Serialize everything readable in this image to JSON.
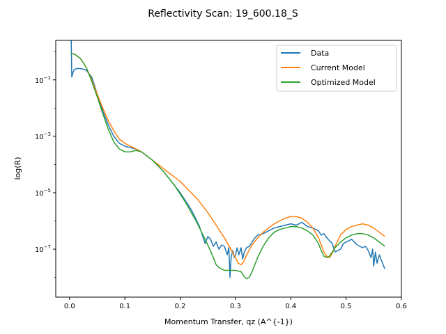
{
  "chart_data": {
    "type": "line",
    "title": "Reflectivity Scan: 19_600.18_S",
    "xlabel": "Momentum Transfer, qz (A^{-1})",
    "ylabel": "log(R)",
    "xlim": [
      -0.025,
      0.6
    ],
    "ylim_log10": [
      -8.7,
      0.4
    ],
    "y_scale": "log",
    "grid": false,
    "legend_position": "top-right",
    "x_ticks": [
      0.0,
      0.1,
      0.2,
      0.3,
      0.4,
      0.5,
      0.6
    ],
    "x_tick_labels": [
      "0.0",
      "0.1",
      "0.2",
      "0.3",
      "0.4",
      "0.5",
      "0.6"
    ],
    "y_ticks_log10": [
      -1,
      -3,
      -5,
      -7
    ],
    "y_tick_labels": [
      {
        "base": "10",
        "exp": "−1"
      },
      {
        "base": "10",
        "exp": "−3"
      },
      {
        "base": "10",
        "exp": "−5"
      },
      {
        "base": "10",
        "exp": "−7"
      }
    ],
    "series": [
      {
        "name": "Data",
        "color": "#1f77b4",
        "x": [
          0.003,
          0.004,
          0.006,
          0.008,
          0.012,
          0.02,
          0.03,
          0.04,
          0.05,
          0.06,
          0.07,
          0.08,
          0.09,
          0.1,
          0.11,
          0.12,
          0.13,
          0.14,
          0.15,
          0.16,
          0.17,
          0.18,
          0.19,
          0.2,
          0.21,
          0.22,
          0.23,
          0.235,
          0.24,
          0.245,
          0.25,
          0.255,
          0.26,
          0.265,
          0.27,
          0.275,
          0.28,
          0.285,
          0.288,
          0.29,
          0.292,
          0.295,
          0.298,
          0.3,
          0.303,
          0.306,
          0.31,
          0.313,
          0.316,
          0.32,
          0.325,
          0.33,
          0.335,
          0.34,
          0.35,
          0.36,
          0.37,
          0.38,
          0.39,
          0.4,
          0.41,
          0.42,
          0.43,
          0.44,
          0.45,
          0.455,
          0.46,
          0.465,
          0.47,
          0.475,
          0.48,
          0.485,
          0.49,
          0.495,
          0.5,
          0.505,
          0.51,
          0.515,
          0.52,
          0.525,
          0.53,
          0.535,
          0.54,
          0.545,
          0.548,
          0.55,
          0.553,
          0.556,
          0.56,
          0.563,
          0.566,
          0.57
        ],
        "y_log10": [
          0.4,
          -0.9,
          -0.75,
          -0.65,
          -0.6,
          -0.6,
          -0.65,
          -0.9,
          -1.5,
          -2.1,
          -2.6,
          -3.0,
          -3.25,
          -3.35,
          -3.4,
          -3.45,
          -3.55,
          -3.7,
          -3.85,
          -4.05,
          -4.25,
          -4.5,
          -4.75,
          -5.0,
          -5.3,
          -5.6,
          -6.0,
          -6.2,
          -6.5,
          -6.8,
          -6.55,
          -6.65,
          -6.9,
          -6.75,
          -7.0,
          -6.85,
          -6.9,
          -7.2,
          -6.95,
          -8.0,
          -7.3,
          -7.05,
          -7.3,
          -7.2,
          -6.95,
          -7.2,
          -6.95,
          -7.35,
          -7.1,
          -6.95,
          -6.9,
          -6.75,
          -6.6,
          -6.5,
          -6.45,
          -6.35,
          -6.25,
          -6.2,
          -6.15,
          -6.1,
          -6.15,
          -6.05,
          -6.2,
          -6.25,
          -6.35,
          -6.5,
          -6.45,
          -6.6,
          -6.7,
          -6.8,
          -7.1,
          -7.05,
          -7.0,
          -6.8,
          -6.75,
          -6.7,
          -6.65,
          -6.75,
          -6.85,
          -6.9,
          -6.95,
          -6.9,
          -7.05,
          -7.3,
          -7.0,
          -7.6,
          -7.1,
          -7.5,
          -7.2,
          -7.35,
          -7.5,
          -7.7
        ]
      },
      {
        "name": "Current Model",
        "color": "#ff7f0e",
        "x": [
          0.002,
          0.01,
          0.02,
          0.03,
          0.04,
          0.05,
          0.06,
          0.07,
          0.08,
          0.09,
          0.1,
          0.11,
          0.12,
          0.13,
          0.14,
          0.15,
          0.16,
          0.17,
          0.18,
          0.19,
          0.2,
          0.21,
          0.22,
          0.23,
          0.24,
          0.25,
          0.26,
          0.27,
          0.28,
          0.29,
          0.3,
          0.305,
          0.31,
          0.315,
          0.32,
          0.33,
          0.34,
          0.35,
          0.36,
          0.37,
          0.38,
          0.39,
          0.4,
          0.41,
          0.42,
          0.43,
          0.44,
          0.45,
          0.455,
          0.46,
          0.465,
          0.47,
          0.475,
          0.48,
          0.49,
          0.5,
          0.51,
          0.52,
          0.53,
          0.54,
          0.55,
          0.56,
          0.57
        ],
        "y_log10": [
          -0.05,
          -0.1,
          -0.25,
          -0.55,
          -1.0,
          -1.5,
          -2.0,
          -2.45,
          -2.8,
          -3.1,
          -3.25,
          -3.35,
          -3.45,
          -3.55,
          -3.7,
          -3.85,
          -4.0,
          -4.15,
          -4.3,
          -4.45,
          -4.6,
          -4.8,
          -5.0,
          -5.2,
          -5.45,
          -5.7,
          -6.0,
          -6.3,
          -6.6,
          -6.95,
          -7.3,
          -7.5,
          -7.55,
          -7.45,
          -7.2,
          -6.85,
          -6.6,
          -6.4,
          -6.25,
          -6.1,
          -6.0,
          -5.9,
          -5.85,
          -5.85,
          -5.9,
          -6.05,
          -6.25,
          -6.6,
          -6.85,
          -7.1,
          -7.25,
          -7.3,
          -7.15,
          -6.9,
          -6.5,
          -6.3,
          -6.2,
          -6.15,
          -6.1,
          -6.15,
          -6.25,
          -6.4,
          -6.55
        ]
      },
      {
        "name": "Optimized Model",
        "color": "#2ca02c",
        "x": [
          0.002,
          0.01,
          0.02,
          0.03,
          0.04,
          0.05,
          0.06,
          0.07,
          0.08,
          0.09,
          0.1,
          0.11,
          0.12,
          0.13,
          0.14,
          0.15,
          0.16,
          0.17,
          0.18,
          0.19,
          0.2,
          0.21,
          0.22,
          0.23,
          0.24,
          0.25,
          0.26,
          0.265,
          0.27,
          0.28,
          0.29,
          0.3,
          0.31,
          0.315,
          0.32,
          0.325,
          0.33,
          0.34,
          0.35,
          0.36,
          0.37,
          0.38,
          0.39,
          0.4,
          0.41,
          0.42,
          0.43,
          0.44,
          0.45,
          0.455,
          0.46,
          0.465,
          0.47,
          0.475,
          0.48,
          0.49,
          0.5,
          0.51,
          0.52,
          0.53,
          0.54,
          0.55,
          0.56,
          0.57
        ],
        "y_log10": [
          -0.05,
          -0.1,
          -0.25,
          -0.55,
          -1.05,
          -1.6,
          -2.2,
          -2.75,
          -3.2,
          -3.45,
          -3.55,
          -3.55,
          -3.5,
          -3.55,
          -3.7,
          -3.85,
          -4.05,
          -4.25,
          -4.5,
          -4.75,
          -5.05,
          -5.35,
          -5.7,
          -6.05,
          -6.45,
          -6.85,
          -7.3,
          -7.55,
          -7.65,
          -7.75,
          -7.75,
          -7.75,
          -7.8,
          -7.95,
          -8.05,
          -8.0,
          -7.8,
          -7.3,
          -6.9,
          -6.6,
          -6.4,
          -6.3,
          -6.25,
          -6.2,
          -6.2,
          -6.25,
          -6.35,
          -6.5,
          -6.8,
          -7.05,
          -7.25,
          -7.3,
          -7.25,
          -7.1,
          -6.95,
          -6.75,
          -6.6,
          -6.5,
          -6.45,
          -6.45,
          -6.5,
          -6.6,
          -6.75,
          -6.9
        ]
      }
    ]
  }
}
